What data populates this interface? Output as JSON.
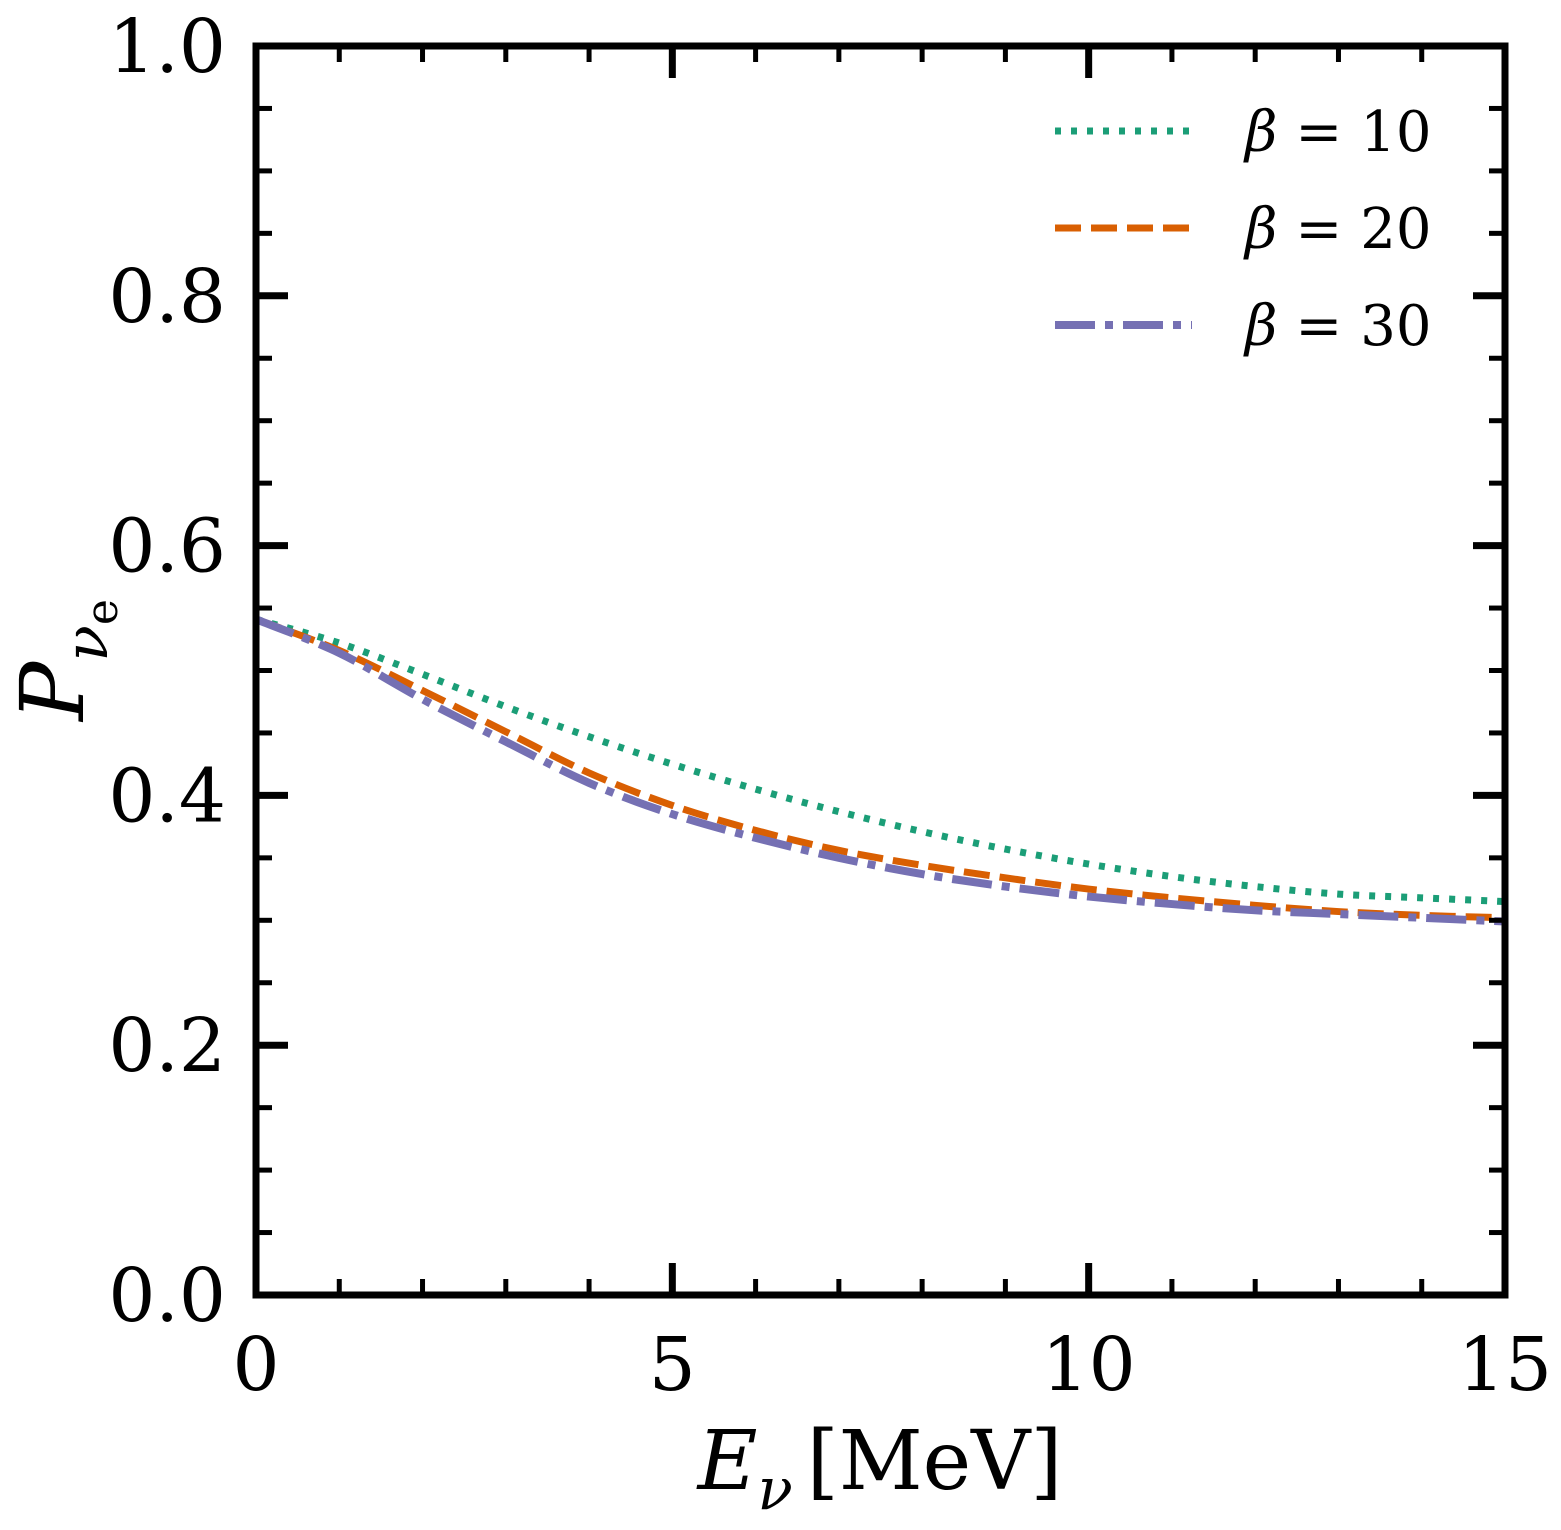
{
  "chart_data": {
    "type": "line",
    "title": "",
    "xlabel": {
      "symbol": "E",
      "subscript": "ν",
      "unit": "[MeV]"
    },
    "ylabel": {
      "symbol": "P",
      "subscript": "ν",
      "subsubscript": "e"
    },
    "xlim": [
      0,
      15
    ],
    "ylim": [
      0,
      1
    ],
    "xticks": [
      0,
      5,
      10,
      15
    ],
    "xtick_labels": [
      "0",
      "5",
      "10",
      "15"
    ],
    "yticks": [
      0,
      0.2,
      0.4,
      0.6,
      0.8,
      1.0
    ],
    "ytick_labels": [
      "0.0",
      "0.2",
      "0.4",
      "0.6",
      "0.8",
      "1.0"
    ],
    "x_minor_step": 1,
    "y_minor_step": 0.05,
    "legend_position": "top-right",
    "grid": false,
    "series": [
      {
        "name": "β = 10",
        "beta_symbol": "β",
        "relation": "=",
        "beta_value": "10",
        "color": "#1b9e77",
        "style": "dotted",
        "points": [
          [
            0,
            0.541
          ],
          [
            1,
            0.522
          ],
          [
            2,
            0.497
          ],
          [
            3,
            0.471
          ],
          [
            4,
            0.447
          ],
          [
            5,
            0.425
          ],
          [
            6,
            0.405
          ],
          [
            7,
            0.387
          ],
          [
            8,
            0.371
          ],
          [
            9,
            0.357
          ],
          [
            10,
            0.345
          ],
          [
            11,
            0.335
          ],
          [
            12,
            0.327
          ],
          [
            13,
            0.321
          ],
          [
            14,
            0.318
          ],
          [
            15,
            0.315
          ]
        ]
      },
      {
        "name": "β = 20",
        "beta_symbol": "β",
        "relation": "=",
        "beta_value": "20",
        "color": "#d95f02",
        "style": "dashed",
        "points": [
          [
            0,
            0.541
          ],
          [
            1,
            0.516
          ],
          [
            2,
            0.484
          ],
          [
            3,
            0.451
          ],
          [
            4,
            0.418
          ],
          [
            5,
            0.392
          ],
          [
            6,
            0.372
          ],
          [
            7,
            0.356
          ],
          [
            8,
            0.344
          ],
          [
            9,
            0.334
          ],
          [
            10,
            0.325
          ],
          [
            11,
            0.318
          ],
          [
            12,
            0.312
          ],
          [
            13,
            0.307
          ],
          [
            14,
            0.304
          ],
          [
            15,
            0.302
          ]
        ]
      },
      {
        "name": "β = 30",
        "beta_symbol": "β",
        "relation": "=",
        "beta_value": "30",
        "color": "#7570b3",
        "style": "dashdot",
        "points": [
          [
            0,
            0.541
          ],
          [
            1,
            0.514
          ],
          [
            2,
            0.477
          ],
          [
            3,
            0.443
          ],
          [
            4,
            0.41
          ],
          [
            5,
            0.385
          ],
          [
            6,
            0.366
          ],
          [
            7,
            0.35
          ],
          [
            8,
            0.337
          ],
          [
            9,
            0.327
          ],
          [
            10,
            0.319
          ],
          [
            11,
            0.313
          ],
          [
            12,
            0.308
          ],
          [
            13,
            0.305
          ],
          [
            14,
            0.302
          ],
          [
            15,
            0.299
          ]
        ]
      }
    ]
  }
}
